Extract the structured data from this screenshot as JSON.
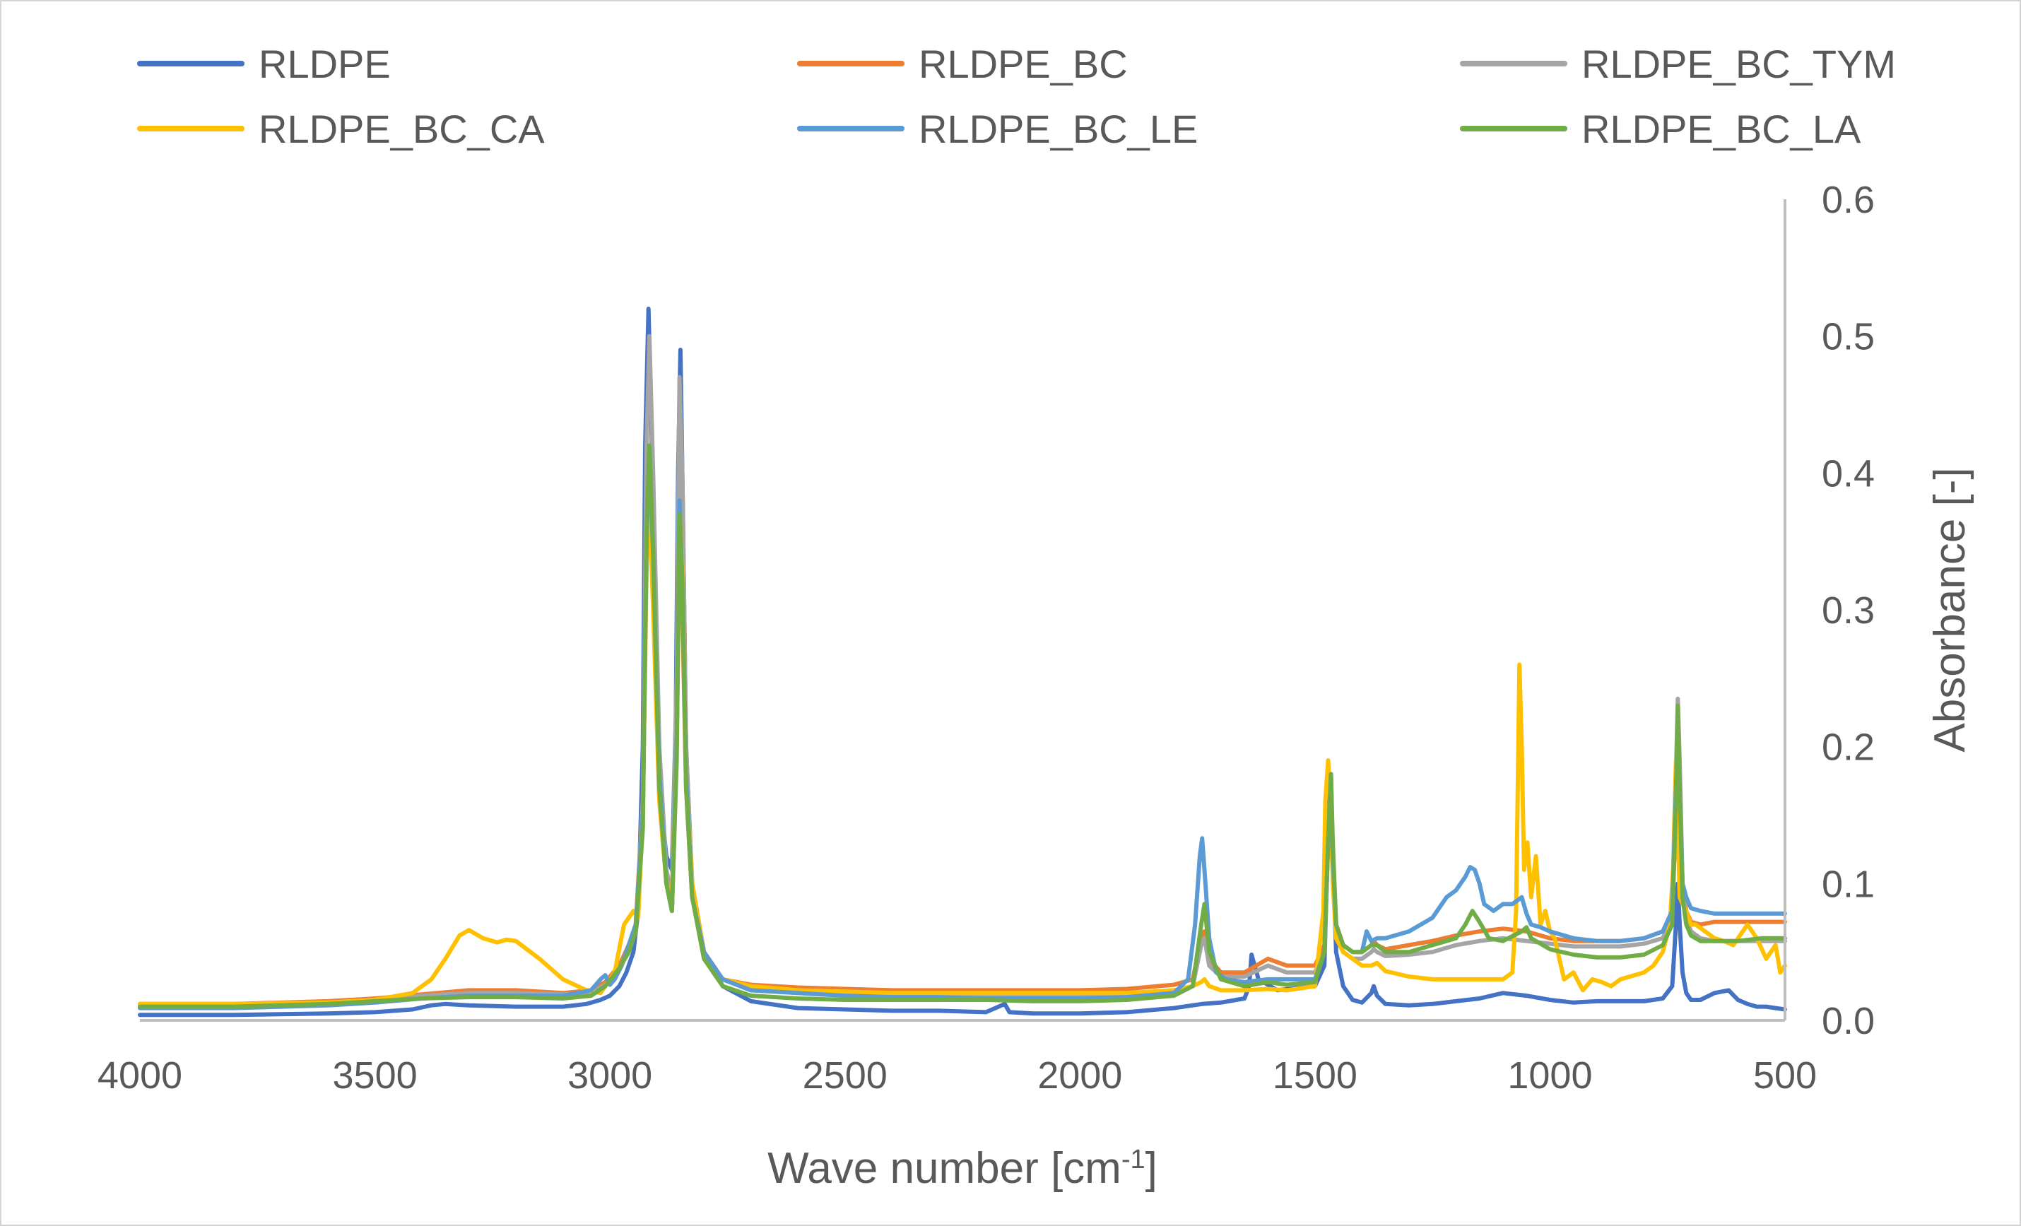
{
  "chart_data": {
    "type": "line",
    "xlabel": "Wave number [cm",
    "xlabel_sup": "-1",
    "xlabel_end": "]",
    "ylabel": "Absorbance [-]",
    "xlim": [
      4000,
      500
    ],
    "x_reversed": true,
    "ylim": [
      0,
      0.6
    ],
    "x_ticks": [
      4000,
      3500,
      3000,
      2500,
      2000,
      1500,
      1000,
      500
    ],
    "x_tick_labels": [
      "4000",
      "3500",
      "3000",
      "2500",
      "2000",
      "1500",
      "1000",
      "500"
    ],
    "y_ticks": [
      0,
      0.1,
      0.2,
      0.3,
      0.4,
      0.5,
      0.6
    ],
    "y_tick_labels": [
      "0.0",
      "0.1",
      "0.2",
      "0.3",
      "0.4",
      "0.5",
      "0.6"
    ],
    "y_axis_side": "right",
    "grid": false,
    "legend_position": "top",
    "series": [
      {
        "name": "RLDPE",
        "color": "#4472C4",
        "x": [
          4000,
          3800,
          3600,
          3500,
          3420,
          3380,
          3350,
          3300,
          3200,
          3100,
          3050,
          3020,
          3000,
          2980,
          2965,
          2950,
          2940,
          2930,
          2925,
          2918,
          2912,
          2905,
          2895,
          2880,
          2868,
          2860,
          2855,
          2850,
          2845,
          2838,
          2825,
          2800,
          2760,
          2700,
          2600,
          2500,
          2400,
          2300,
          2200,
          2160,
          2150,
          2100,
          2000,
          1900,
          1800,
          1760,
          1740,
          1700,
          1650,
          1640,
          1635,
          1620,
          1580,
          1500,
          1480,
          1472,
          1466,
          1462,
          1455,
          1440,
          1420,
          1400,
          1380,
          1375,
          1368,
          1350,
          1300,
          1250,
          1200,
          1150,
          1100,
          1050,
          1000,
          950,
          900,
          850,
          800,
          760,
          740,
          732,
          728,
          724,
          718,
          710,
          700,
          680,
          650,
          620,
          600,
          580,
          560,
          540,
          520,
          500
        ],
        "y": [
          0.004,
          0.004,
          0.005,
          0.006,
          0.008,
          0.011,
          0.012,
          0.011,
          0.01,
          0.01,
          0.012,
          0.015,
          0.018,
          0.025,
          0.035,
          0.05,
          0.08,
          0.2,
          0.42,
          0.52,
          0.44,
          0.3,
          0.17,
          0.12,
          0.11,
          0.22,
          0.4,
          0.49,
          0.38,
          0.2,
          0.1,
          0.05,
          0.025,
          0.014,
          0.009,
          0.008,
          0.007,
          0.007,
          0.006,
          0.012,
          0.006,
          0.005,
          0.005,
          0.006,
          0.009,
          0.011,
          0.012,
          0.013,
          0.016,
          0.025,
          0.048,
          0.03,
          0.022,
          0.025,
          0.04,
          0.14,
          0.18,
          0.12,
          0.05,
          0.025,
          0.015,
          0.013,
          0.02,
          0.025,
          0.018,
          0.012,
          0.011,
          0.012,
          0.014,
          0.016,
          0.02,
          0.018,
          0.015,
          0.013,
          0.014,
          0.014,
          0.014,
          0.016,
          0.025,
          0.07,
          0.1,
          0.07,
          0.035,
          0.02,
          0.015,
          0.015,
          0.02,
          0.022,
          0.015,
          0.012,
          0.01,
          0.01,
          0.009,
          0.008
        ]
      },
      {
        "name": "RLDPE_BC",
        "color": "#ED7D31",
        "x": [
          4000,
          3800,
          3600,
          3500,
          3400,
          3300,
          3200,
          3100,
          3040,
          3010,
          2980,
          2960,
          2945,
          2930,
          2922,
          2916,
          2908,
          2895,
          2880,
          2868,
          2858,
          2852,
          2846,
          2838,
          2825,
          2800,
          2760,
          2700,
          2600,
          2500,
          2400,
          2300,
          2200,
          2100,
          2000,
          1900,
          1800,
          1760,
          1742,
          1735,
          1725,
          1700,
          1650,
          1600,
          1560,
          1500,
          1480,
          1472,
          1466,
          1462,
          1455,
          1440,
          1420,
          1400,
          1380,
          1375,
          1368,
          1350,
          1300,
          1250,
          1200,
          1150,
          1100,
          1050,
          1000,
          950,
          900,
          850,
          800,
          760,
          740,
          732,
          728,
          724,
          718,
          710,
          700,
          680,
          650,
          600,
          550,
          500
        ],
        "y": [
          0.012,
          0.012,
          0.014,
          0.016,
          0.019,
          0.022,
          0.022,
          0.02,
          0.022,
          0.028,
          0.04,
          0.055,
          0.07,
          0.16,
          0.36,
          0.41,
          0.32,
          0.17,
          0.1,
          0.08,
          0.2,
          0.35,
          0.3,
          0.17,
          0.09,
          0.05,
          0.03,
          0.026,
          0.024,
          0.023,
          0.022,
          0.022,
          0.022,
          0.022,
          0.022,
          0.023,
          0.026,
          0.03,
          0.06,
          0.065,
          0.045,
          0.035,
          0.035,
          0.045,
          0.04,
          0.04,
          0.055,
          0.14,
          0.17,
          0.12,
          0.07,
          0.055,
          0.05,
          0.05,
          0.055,
          0.058,
          0.055,
          0.052,
          0.055,
          0.058,
          0.062,
          0.065,
          0.067,
          0.065,
          0.06,
          0.058,
          0.058,
          0.058,
          0.06,
          0.065,
          0.08,
          0.15,
          0.2,
          0.16,
          0.1,
          0.08,
          0.072,
          0.07,
          0.072,
          0.072,
          0.072,
          0.072
        ]
      },
      {
        "name": "RLDPE_BC_TYM",
        "color": "#A5A5A5",
        "x": [
          4000,
          3800,
          3600,
          3500,
          3400,
          3300,
          3200,
          3100,
          3040,
          3010,
          2980,
          2960,
          2945,
          2930,
          2922,
          2916,
          2908,
          2895,
          2880,
          2868,
          2858,
          2852,
          2846,
          2838,
          2825,
          2800,
          2760,
          2700,
          2600,
          2500,
          2400,
          2300,
          2200,
          2100,
          2000,
          1900,
          1800,
          1760,
          1742,
          1735,
          1725,
          1700,
          1650,
          1600,
          1560,
          1500,
          1480,
          1472,
          1466,
          1462,
          1455,
          1440,
          1420,
          1400,
          1380,
          1375,
          1368,
          1350,
          1300,
          1250,
          1200,
          1150,
          1100,
          1050,
          1000,
          950,
          900,
          850,
          800,
          760,
          740,
          732,
          728,
          724,
          718,
          710,
          700,
          680,
          650,
          600,
          550,
          500
        ],
        "y": [
          0.011,
          0.011,
          0.013,
          0.015,
          0.018,
          0.02,
          0.02,
          0.019,
          0.02,
          0.026,
          0.038,
          0.05,
          0.065,
          0.16,
          0.42,
          0.5,
          0.4,
          0.2,
          0.11,
          0.09,
          0.25,
          0.47,
          0.4,
          0.2,
          0.1,
          0.05,
          0.03,
          0.022,
          0.02,
          0.018,
          0.018,
          0.017,
          0.017,
          0.017,
          0.017,
          0.018,
          0.02,
          0.025,
          0.055,
          0.06,
          0.04,
          0.032,
          0.032,
          0.04,
          0.035,
          0.035,
          0.05,
          0.13,
          0.175,
          0.12,
          0.065,
          0.05,
          0.045,
          0.045,
          0.05,
          0.052,
          0.05,
          0.047,
          0.048,
          0.05,
          0.055,
          0.058,
          0.06,
          0.058,
          0.056,
          0.054,
          0.054,
          0.054,
          0.056,
          0.06,
          0.075,
          0.18,
          0.235,
          0.19,
          0.1,
          0.075,
          0.065,
          0.06,
          0.058,
          0.058,
          0.058,
          0.058
        ]
      },
      {
        "name": "RLDPE_BC_CA",
        "color": "#FFC000",
        "x": [
          4000,
          3800,
          3600,
          3500,
          3420,
          3380,
          3350,
          3320,
          3300,
          3270,
          3240,
          3220,
          3200,
          3150,
          3100,
          3050,
          3020,
          2990,
          2970,
          2960,
          2950,
          2940,
          2930,
          2922,
          2916,
          2908,
          2895,
          2880,
          2868,
          2858,
          2852,
          2846,
          2838,
          2825,
          2800,
          2760,
          2700,
          2600,
          2500,
          2400,
          2300,
          2200,
          2100,
          2000,
          1900,
          1800,
          1760,
          1742,
          1735,
          1725,
          1700,
          1650,
          1600,
          1560,
          1500,
          1482,
          1478,
          1472,
          1466,
          1462,
          1455,
          1440,
          1420,
          1400,
          1380,
          1368,
          1350,
          1300,
          1250,
          1200,
          1150,
          1100,
          1080,
          1072,
          1065,
          1060,
          1055,
          1048,
          1040,
          1030,
          1020,
          1010,
          1000,
          990,
          980,
          970,
          950,
          930,
          910,
          890,
          870,
          850,
          830,
          800,
          780,
          760,
          745,
          738,
          732,
          728,
          724,
          718,
          710,
          700,
          690,
          670,
          650,
          630,
          610,
          600,
          580,
          560,
          540,
          520,
          510,
          500
        ],
        "y": [
          0.012,
          0.012,
          0.013,
          0.015,
          0.02,
          0.03,
          0.045,
          0.062,
          0.066,
          0.06,
          0.057,
          0.059,
          0.058,
          0.045,
          0.03,
          0.022,
          0.02,
          0.035,
          0.07,
          0.075,
          0.08,
          0.075,
          0.15,
          0.33,
          0.38,
          0.3,
          0.16,
          0.1,
          0.09,
          0.2,
          0.38,
          0.33,
          0.18,
          0.1,
          0.05,
          0.03,
          0.025,
          0.022,
          0.021,
          0.02,
          0.02,
          0.02,
          0.02,
          0.02,
          0.02,
          0.022,
          0.025,
          0.028,
          0.03,
          0.025,
          0.022,
          0.022,
          0.023,
          0.022,
          0.025,
          0.08,
          0.16,
          0.19,
          0.15,
          0.1,
          0.06,
          0.05,
          0.045,
          0.04,
          0.04,
          0.042,
          0.036,
          0.032,
          0.03,
          0.03,
          0.03,
          0.03,
          0.035,
          0.08,
          0.26,
          0.2,
          0.11,
          0.13,
          0.09,
          0.12,
          0.07,
          0.08,
          0.065,
          0.06,
          0.045,
          0.03,
          0.035,
          0.022,
          0.03,
          0.028,
          0.025,
          0.03,
          0.032,
          0.035,
          0.04,
          0.05,
          0.07,
          0.11,
          0.19,
          0.14,
          0.09,
          0.085,
          0.08,
          0.07,
          0.07,
          0.065,
          0.06,
          0.058,
          0.055,
          0.06,
          0.07,
          0.06,
          0.045,
          0.055,
          0.035,
          0.04
        ]
      },
      {
        "name": "RLDPE_BC_LE",
        "color": "#5B9BD5",
        "x": [
          4000,
          3800,
          3600,
          3500,
          3400,
          3300,
          3200,
          3100,
          3040,
          3020,
          3010,
          3000,
          2990,
          2975,
          2960,
          2945,
          2930,
          2922,
          2916,
          2908,
          2895,
          2880,
          2868,
          2858,
          2852,
          2846,
          2838,
          2825,
          2800,
          2760,
          2700,
          2600,
          2500,
          2400,
          2300,
          2200,
          2100,
          2000,
          1900,
          1800,
          1770,
          1755,
          1745,
          1740,
          1735,
          1725,
          1710,
          1690,
          1650,
          1600,
          1560,
          1500,
          1480,
          1472,
          1466,
          1462,
          1455,
          1440,
          1420,
          1400,
          1390,
          1380,
          1368,
          1350,
          1300,
          1250,
          1220,
          1200,
          1180,
          1170,
          1160,
          1150,
          1140,
          1120,
          1100,
          1080,
          1060,
          1050,
          1040,
          1020,
          1000,
          950,
          900,
          850,
          800,
          760,
          740,
          732,
          728,
          724,
          718,
          710,
          700,
          680,
          650,
          600,
          550,
          500
        ],
        "y": [
          0.009,
          0.009,
          0.011,
          0.013,
          0.016,
          0.018,
          0.018,
          0.018,
          0.022,
          0.03,
          0.033,
          0.026,
          0.03,
          0.04,
          0.055,
          0.07,
          0.15,
          0.35,
          0.42,
          0.34,
          0.18,
          0.1,
          0.08,
          0.2,
          0.38,
          0.32,
          0.18,
          0.09,
          0.05,
          0.03,
          0.022,
          0.02,
          0.018,
          0.017,
          0.017,
          0.016,
          0.016,
          0.016,
          0.017,
          0.02,
          0.03,
          0.07,
          0.12,
          0.133,
          0.11,
          0.06,
          0.035,
          0.03,
          0.028,
          0.03,
          0.03,
          0.03,
          0.05,
          0.13,
          0.17,
          0.12,
          0.07,
          0.055,
          0.05,
          0.05,
          0.065,
          0.058,
          0.06,
          0.06,
          0.065,
          0.075,
          0.09,
          0.095,
          0.105,
          0.112,
          0.11,
          0.1,
          0.085,
          0.08,
          0.085,
          0.085,
          0.09,
          0.078,
          0.07,
          0.068,
          0.065,
          0.06,
          0.058,
          0.058,
          0.06,
          0.065,
          0.08,
          0.17,
          0.21,
          0.17,
          0.1,
          0.09,
          0.082,
          0.08,
          0.078,
          0.078,
          0.078,
          0.078
        ]
      },
      {
        "name": "RLDPE_BC_LA",
        "color": "#70AD47",
        "x": [
          4000,
          3800,
          3600,
          3500,
          3400,
          3300,
          3200,
          3100,
          3040,
          3010,
          2980,
          2960,
          2945,
          2930,
          2922,
          2916,
          2908,
          2895,
          2880,
          2868,
          2858,
          2852,
          2846,
          2838,
          2825,
          2800,
          2760,
          2700,
          2600,
          2500,
          2400,
          2300,
          2200,
          2100,
          2000,
          1900,
          1800,
          1760,
          1742,
          1735,
          1725,
          1700,
          1650,
          1600,
          1560,
          1500,
          1480,
          1472,
          1466,
          1462,
          1455,
          1440,
          1420,
          1400,
          1380,
          1368,
          1350,
          1300,
          1250,
          1200,
          1180,
          1165,
          1150,
          1130,
          1100,
          1060,
          1050,
          1040,
          1000,
          950,
          900,
          850,
          800,
          760,
          740,
          732,
          728,
          724,
          718,
          710,
          700,
          680,
          650,
          600,
          550,
          500
        ],
        "y": [
          0.01,
          0.01,
          0.012,
          0.014,
          0.016,
          0.017,
          0.017,
          0.016,
          0.018,
          0.025,
          0.038,
          0.05,
          0.065,
          0.14,
          0.36,
          0.42,
          0.34,
          0.17,
          0.1,
          0.08,
          0.19,
          0.37,
          0.32,
          0.17,
          0.09,
          0.045,
          0.025,
          0.018,
          0.016,
          0.015,
          0.015,
          0.015,
          0.015,
          0.014,
          0.014,
          0.015,
          0.018,
          0.025,
          0.07,
          0.085,
          0.05,
          0.03,
          0.025,
          0.028,
          0.026,
          0.028,
          0.05,
          0.13,
          0.18,
          0.13,
          0.07,
          0.055,
          0.05,
          0.05,
          0.055,
          0.055,
          0.05,
          0.05,
          0.055,
          0.06,
          0.07,
          0.08,
          0.072,
          0.06,
          0.058,
          0.065,
          0.068,
          0.06,
          0.052,
          0.048,
          0.046,
          0.046,
          0.048,
          0.055,
          0.07,
          0.16,
          0.23,
          0.17,
          0.09,
          0.07,
          0.062,
          0.058,
          0.058,
          0.058,
          0.06,
          0.06
        ]
      }
    ]
  }
}
